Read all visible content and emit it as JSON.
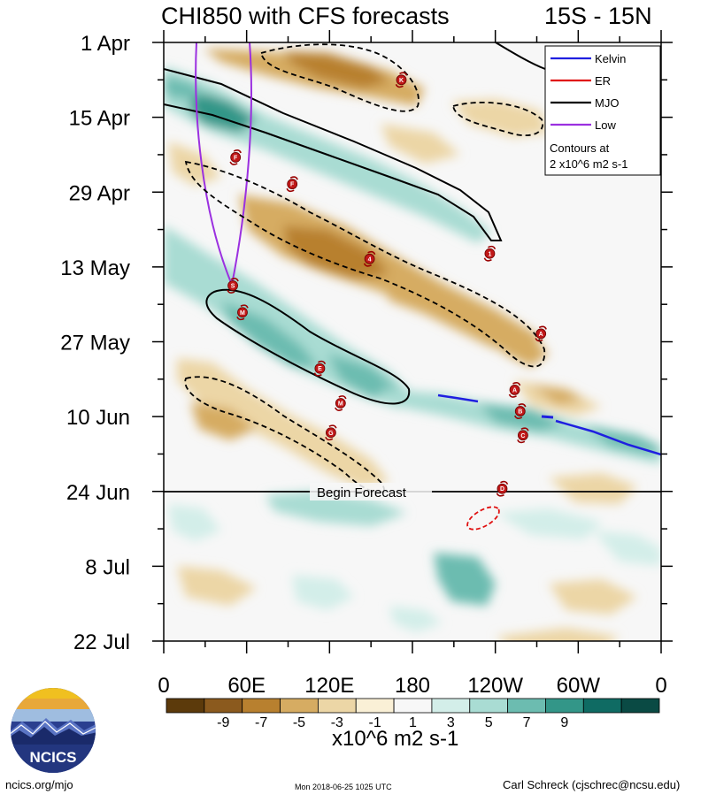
{
  "header": {
    "title": "CHI850 with CFS forecasts",
    "region": "15S - 15N"
  },
  "chart_data": {
    "type": "heatmap",
    "title": "CHI850 with CFS forecasts",
    "subtitle": "15S - 15N",
    "x_ticks": [
      "0",
      "60E",
      "120E",
      "180",
      "120W",
      "60W",
      "0"
    ],
    "y_ticks": [
      "1 Apr",
      "15 Apr",
      "29 Apr",
      "13 May",
      "27 May",
      "10 Jun",
      "24 Jun",
      "8 Jul",
      "22 Jul"
    ],
    "y_axis_days_per_tick": 14,
    "xlim_deg_east": [
      0,
      360
    ],
    "ylim_days_from_1_apr": [
      0,
      112
    ],
    "forecast_start": "Begin Forecast",
    "forecast_start_day": 84,
    "colorbar": {
      "units": "x10^6 m2 s-1",
      "tick_labels": [
        "-9",
        "-7",
        "-5",
        "-3",
        "-1",
        "1",
        "3",
        "5",
        "7",
        "9"
      ],
      "colors": [
        "#5c3a0b",
        "#8b5a1e",
        "#b8802f",
        "#d6ac62",
        "#ecd6a6",
        "#faf0d6",
        "#f7f7f7",
        "#d3eee9",
        "#a9dcd3",
        "#6cbcb0",
        "#339688",
        "#0f6b63",
        "#0a4a44"
      ]
    },
    "legend": {
      "placement": "top-right",
      "items": [
        {
          "name": "Kelvin",
          "color": "#1f1fe0"
        },
        {
          "name": "ER",
          "color": "#e01010"
        },
        {
          "name": "MJO",
          "color": "#000000"
        },
        {
          "name": "Low",
          "color": "#9b30e0"
        }
      ],
      "note_line1": "Contours at",
      "note_line2": "2 x10^6 m2 s-1"
    },
    "storms": [
      {
        "label": "K",
        "lon": 172,
        "day": 7
      },
      {
        "label": "F",
        "lon": 52,
        "day": 21.5
      },
      {
        "label": "F",
        "lon": 93,
        "day": 26.5
      },
      {
        "label": "4",
        "lon": 149,
        "day": 40.5
      },
      {
        "label": "1",
        "lon": 236,
        "day": 39.5
      },
      {
        "label": "S",
        "lon": 50,
        "day": 45.5
      },
      {
        "label": "M",
        "lon": 57,
        "day": 50.5
      },
      {
        "label": "A",
        "lon": 273,
        "day": 54.5
      },
      {
        "label": "E",
        "lon": 113,
        "day": 61
      },
      {
        "label": "M",
        "lon": 128,
        "day": 67.5
      },
      {
        "label": "A",
        "lon": 254,
        "day": 65
      },
      {
        "label": "B",
        "lon": 258,
        "day": 69
      },
      {
        "label": "G",
        "lon": 121,
        "day": 73
      },
      {
        "label": "C",
        "lon": 260,
        "day": 73.5
      },
      {
        "label": "D",
        "lon": 245,
        "day": 83.5
      }
    ]
  },
  "footer": {
    "logo_text": "NCICS",
    "site": "ncics.org/mjo",
    "timestamp": "Mon 2018-06-25 1025 UTC",
    "author": "Carl Schreck (cjschrec@ncsu.edu)"
  }
}
